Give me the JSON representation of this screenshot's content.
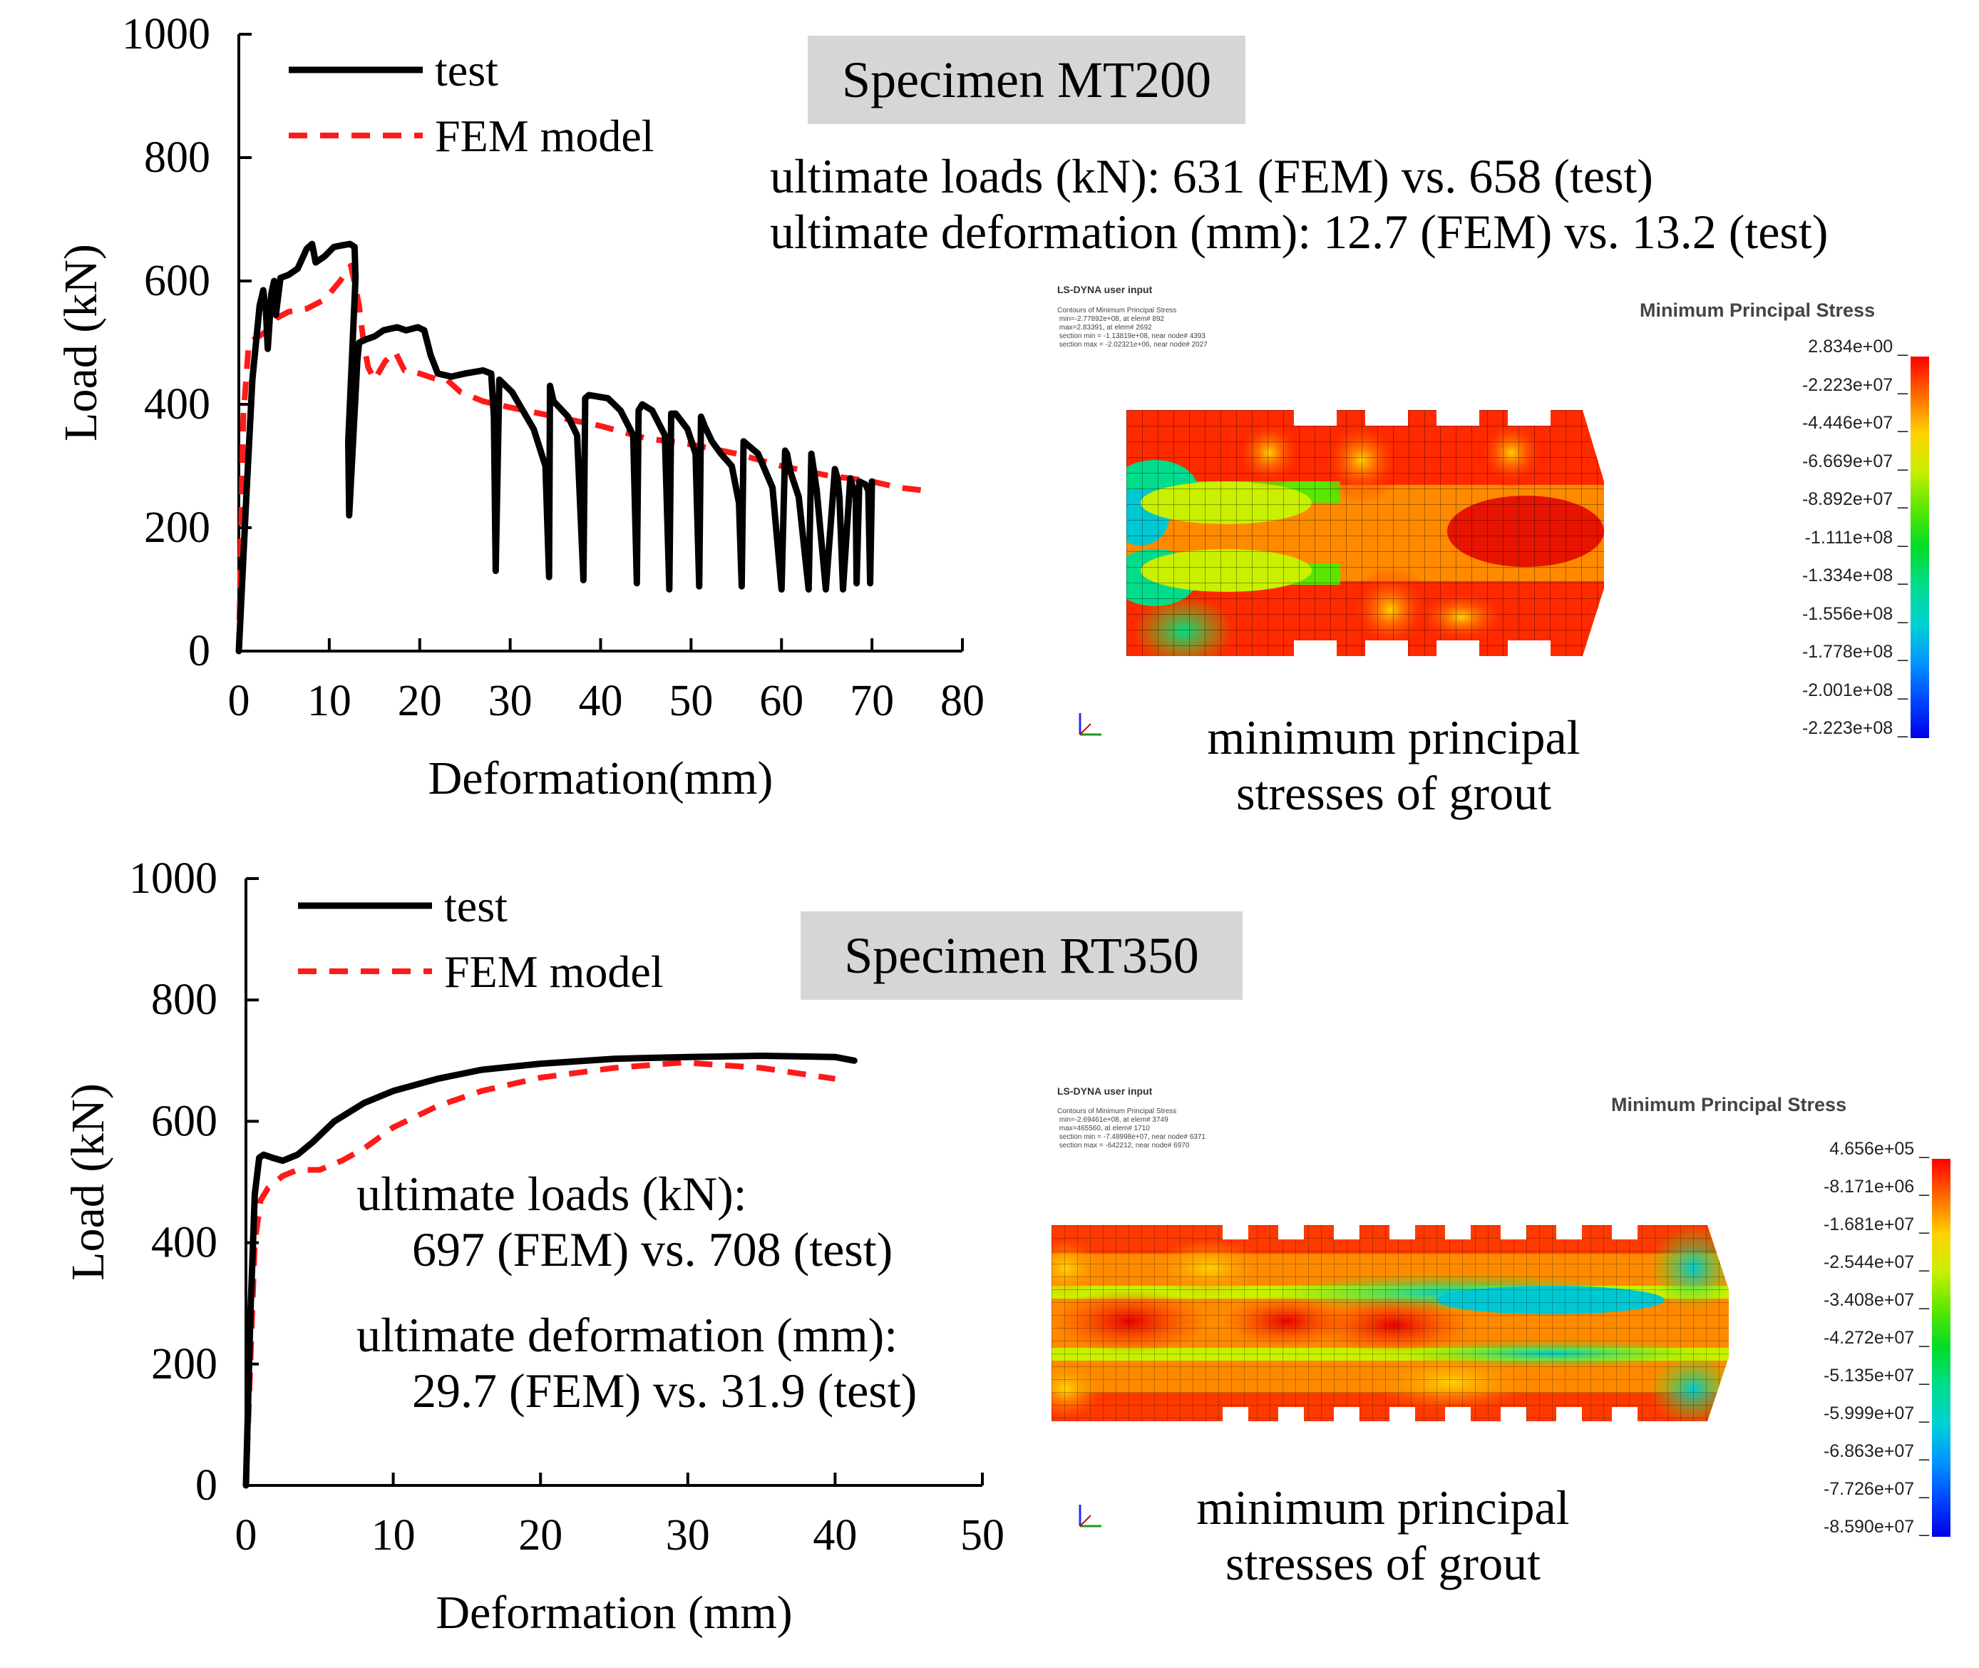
{
  "chart_data": [
    {
      "type": "line",
      "xlabel": "Deformation(mm)",
      "ylabel": "Load (kN)",
      "xlim": [
        0,
        80
      ],
      "ylim": [
        0,
        1000
      ],
      "x_ticks": [
        0,
        10,
        20,
        30,
        40,
        50,
        60,
        70,
        80
      ],
      "y_ticks": [
        0,
        200,
        400,
        600,
        800,
        1000
      ],
      "legend": "top-left",
      "series": [
        {
          "name": "test",
          "color": "#000000",
          "style": "solid",
          "x": [
            0,
            0.8,
            1.5,
            2.3,
            2.7,
            3.0,
            3.2,
            3.6,
            3.9,
            4.1,
            4.6,
            5.5,
            6.5,
            7.5,
            8.1,
            8.5,
            9.5,
            10.5,
            11.5,
            12.3,
            12.8,
            12.9,
            12.1,
            12.2,
            13.1,
            13.3,
            14,
            15,
            16,
            17.5,
            18.5,
            19.8,
            20.5,
            21.2,
            22,
            23.5,
            25,
            27,
            27.9,
            28.2,
            28.4,
            28.8,
            30.2,
            31.4,
            32.6,
            33.9,
            34.3,
            34.4,
            34.8,
            36.4,
            37.4,
            38.1,
            38.3,
            38.7,
            40.8,
            42.2,
            43.6,
            44.0,
            44.2,
            44.6,
            45.7,
            47.1,
            47.6,
            47.8,
            48.3,
            49.6,
            50.5,
            50.9,
            51.1,
            51.5,
            52.3,
            53.3,
            54.5,
            55.3,
            55.6,
            55.8,
            56.2,
            57.4,
            59.0,
            60.0,
            60.4,
            60.6,
            61.0,
            61.9,
            63.0,
            63.3,
            63.5,
            63.9,
            64.9,
            65.9,
            66.2,
            66.4,
            66.8,
            67.6,
            67.9,
            68.2,
            68.3,
            68.6,
            69.3,
            69.6,
            69.8,
            70.0
          ],
          "y": [
            0,
            240,
            440,
            560,
            585,
            550,
            490,
            580,
            600,
            545,
            605,
            610,
            620,
            652,
            660,
            630,
            640,
            655,
            658,
            660,
            655,
            605,
            340,
            220,
            470,
            500,
            505,
            510,
            520,
            525,
            520,
            525,
            520,
            480,
            450,
            445,
            450,
            455,
            450,
            380,
            130,
            440,
            420,
            390,
            360,
            300,
            120,
            430,
            405,
            380,
            350,
            115,
            410,
            415,
            410,
            390,
            350,
            110,
            390,
            400,
            390,
            350,
            100,
            385,
            385,
            360,
            320,
            105,
            380,
            365,
            340,
            320,
            300,
            240,
            105,
            340,
            335,
            320,
            265,
            100,
            325,
            320,
            290,
            250,
            100,
            320,
            300,
            260,
            100,
            295,
            280,
            250,
            100,
            280,
            265,
            250,
            110,
            275,
            270,
            260,
            110,
            275
          ]
        },
        {
          "name": "FEM model",
          "color": "#ff1a1a",
          "style": "dashed",
          "x": [
            0,
            0.5,
            1.1,
            2.2,
            3.2,
            4.2,
            5.5,
            7.5,
            9.5,
            11.2,
            12.4,
            13.3,
            13.8,
            14.3,
            15.0,
            16.2,
            17.3,
            18.3,
            20,
            22,
            23,
            24.5,
            27,
            30,
            35,
            40,
            45,
            50,
            55,
            60,
            65,
            70,
            73,
            76
          ],
          "y": [
            0,
            380,
            500,
            510,
            520,
            540,
            550,
            555,
            570,
            600,
            625,
            560,
            500,
            460,
            440,
            470,
            485,
            455,
            450,
            440,
            440,
            420,
            405,
            395,
            380,
            365,
            345,
            335,
            320,
            300,
            285,
            275,
            265,
            260
          ]
        }
      ]
    },
    {
      "type": "line",
      "xlabel": "Deformation (mm)",
      "ylabel": "Load (kN)",
      "xlim": [
        0,
        50
      ],
      "ylim": [
        0,
        1000
      ],
      "x_ticks": [
        0,
        10,
        20,
        30,
        40,
        50
      ],
      "y_ticks": [
        0,
        200,
        400,
        600,
        800,
        1000
      ],
      "legend": "top-left",
      "series": [
        {
          "name": "test",
          "color": "#000000",
          "style": "solid",
          "x": [
            0,
            0.3,
            0.6,
            0.9,
            1.2,
            1.8,
            2.5,
            3.5,
            4.5,
            6,
            8,
            10,
            13,
            16,
            20,
            25,
            30,
            35,
            40,
            41.3
          ],
          "y": [
            0,
            280,
            480,
            540,
            545,
            540,
            535,
            545,
            565,
            600,
            630,
            650,
            670,
            685,
            695,
            703,
            706,
            708,
            706,
            700
          ]
        },
        {
          "name": "FEM model",
          "color": "#ff1a1a",
          "style": "dashed",
          "x": [
            0,
            0.3,
            0.6,
            1.0,
            1.5,
            2.5,
            3.5,
            5,
            6.5,
            8,
            10,
            13,
            16,
            20,
            25,
            29.7,
            35,
            40
          ],
          "y": [
            0,
            200,
            400,
            470,
            490,
            510,
            520,
            520,
            535,
            555,
            590,
            625,
            650,
            672,
            688,
            697,
            688,
            670
          ]
        }
      ]
    }
  ],
  "panels": {
    "mt200": {
      "specimen": "Specimen MT200",
      "ultimate_loads": "ultimate loads (kN): 631 (FEM) vs. 658 (test)",
      "ultimate_deformation": "ultimate deformation (mm): 12.7 (FEM) vs. 13.2 (test)",
      "caption_line1": "minimum principal",
      "caption_line2": "stresses of grout",
      "lsdyna_header": "LS-DYNA user input",
      "lsdyna_info": "Contours of Minimum Principal Stress\n min=-2.77892e+08, at elem# 892\n max=2.83391, at elem# 2692\n section min = -1.13819e+08, near node# 4393\n section max = -2.02321e+06, near node# 2027",
      "colorbar_title": "Minimum Principal Stress",
      "colorbar_labels": [
        "2.834e+00",
        "-2.223e+07",
        "-4.446e+07",
        "-6.669e+07",
        "-8.892e+07",
        "-1.111e+08",
        "-1.334e+08",
        "-1.556e+08",
        "-1.778e+08",
        "-2.001e+08",
        "-2.223e+08"
      ],
      "colorbar_colors": [
        "#ff0000",
        "#ff6a00",
        "#ffd200",
        "#c8f000",
        "#5ae600",
        "#00dc28",
        "#00dc8c",
        "#00d2d2",
        "#0096ff",
        "#0046ff",
        "#0000e6"
      ]
    },
    "rt350": {
      "specimen": "Specimen RT350",
      "ultimate_loads_label": "ultimate loads (kN):",
      "ultimate_loads_values": "697 (FEM) vs. 708 (test)",
      "ultimate_deformation_label": "ultimate deformation (mm):",
      "ultimate_deformation_values": "29.7 (FEM) vs. 31.9 (test)",
      "caption_line1": "minimum principal",
      "caption_line2": "stresses of grout",
      "lsdyna_header": "LS-DYNA user input",
      "lsdyna_info": "Contours of Minimum Principal Stress\n min=-2.69461e+08, at elem# 3749\n max=465560, at elem# 1710\n section min = -7.48998e+07, near node# 6371\n section max = -642212, near node# 6970",
      "colorbar_title": "Minimum Principal Stress",
      "colorbar_labels": [
        "4.656e+05",
        "-8.171e+06",
        "-1.681e+07",
        "-2.544e+07",
        "-3.408e+07",
        "-4.272e+07",
        "-5.135e+07",
        "-5.999e+07",
        "-6.863e+07",
        "-7.726e+07",
        "-8.590e+07"
      ],
      "colorbar_colors": [
        "#ff0000",
        "#ff6a00",
        "#ffd200",
        "#c8f000",
        "#5ae600",
        "#00dc28",
        "#00dc8c",
        "#00d2d2",
        "#0096ff",
        "#0046ff",
        "#0000e6"
      ]
    }
  }
}
